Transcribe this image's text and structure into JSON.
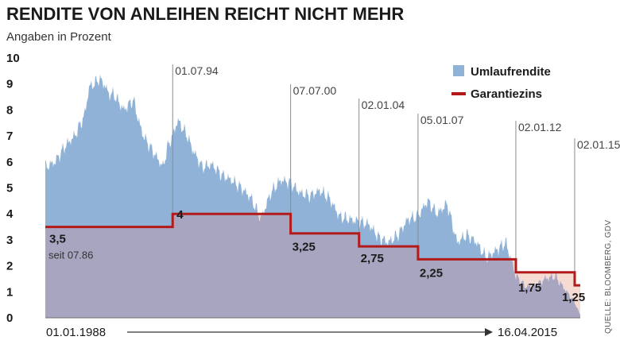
{
  "title": "RENDITE VON ANLEIHEN REICHT NICHT MEHR",
  "subtitle": "Angaben in Prozent",
  "source": "QUELLE: BLOOMBERG, GDV",
  "colors": {
    "umlauf": "#8fb2d6",
    "garantie": "#b31b1b",
    "gap_fill": "#f6dbd3",
    "overlap": "#a7a5bf"
  },
  "chart_data": {
    "type": "area",
    "title": "RENDITE VON ANLEIHEN REICHT NICHT MEHR",
    "ylabel": "Angaben in Prozent",
    "ylim": [
      0,
      10
    ],
    "yticks": [
      "0",
      "1",
      "2",
      "3",
      "4",
      "5",
      "6",
      "7",
      "8",
      "9",
      "10"
    ],
    "x_range": [
      "01.01.1988",
      "16.04.2015"
    ],
    "x_start_label": "01.01.1988",
    "x_end_label": "16.04.2015",
    "legend_position": "top-right",
    "series": [
      {
        "name": "Umlaufrendite",
        "kind": "area",
        "points": [
          [
            "01.01.1988",
            5.8
          ],
          [
            "01.07.1988",
            6.0
          ],
          [
            "01.01.1989",
            6.6
          ],
          [
            "01.07.1989",
            7.0
          ],
          [
            "01.01.1990",
            7.8
          ],
          [
            "01.04.1990",
            8.9
          ],
          [
            "01.07.1990",
            9.0
          ],
          [
            "01.10.1990",
            9.2
          ],
          [
            "01.01.1991",
            9.0
          ],
          [
            "01.04.1991",
            8.6
          ],
          [
            "01.07.1991",
            8.6
          ],
          [
            "01.10.1991",
            8.3
          ],
          [
            "01.01.1992",
            8.0
          ],
          [
            "01.04.1992",
            8.2
          ],
          [
            "01.07.1992",
            8.4
          ],
          [
            "01.10.1992",
            7.6
          ],
          [
            "01.01.1993",
            7.0
          ],
          [
            "01.07.1993",
            6.4
          ],
          [
            "01.01.1994",
            5.8
          ],
          [
            "01.04.1994",
            6.6
          ],
          [
            "01.07.1994",
            7.0
          ],
          [
            "01.10.1994",
            7.6
          ],
          [
            "01.01.1995",
            7.3
          ],
          [
            "01.04.1995",
            7.0
          ],
          [
            "01.07.1995",
            6.5
          ],
          [
            "01.01.1996",
            5.8
          ],
          [
            "01.07.1996",
            5.9
          ],
          [
            "01.01.1997",
            5.5
          ],
          [
            "01.07.1997",
            5.3
          ],
          [
            "01.01.1998",
            5.0
          ],
          [
            "01.07.1998",
            4.6
          ],
          [
            "01.01.1999",
            3.8
          ],
          [
            "01.07.1999",
            4.8
          ],
          [
            "01.01.2000",
            5.3
          ],
          [
            "01.07.2000",
            5.2
          ],
          [
            "01.01.2001",
            4.8
          ],
          [
            "01.07.2001",
            4.7
          ],
          [
            "01.01.2002",
            4.9
          ],
          [
            "01.07.2002",
            4.6
          ],
          [
            "01.01.2003",
            3.9
          ],
          [
            "01.07.2003",
            3.8
          ],
          [
            "01.01.2004",
            3.7
          ],
          [
            "01.07.2004",
            3.6
          ],
          [
            "01.01.2005",
            3.1
          ],
          [
            "01.07.2005",
            2.9
          ],
          [
            "01.01.2006",
            3.2
          ],
          [
            "01.07.2006",
            3.8
          ],
          [
            "01.01.2007",
            3.9
          ],
          [
            "01.07.2007",
            4.5
          ],
          [
            "01.01.2008",
            4.0
          ],
          [
            "01.07.2008",
            4.4
          ],
          [
            "01.01.2009",
            2.9
          ],
          [
            "01.07.2009",
            3.2
          ],
          [
            "01.01.2010",
            2.9
          ],
          [
            "01.07.2010",
            2.3
          ],
          [
            "01.01.2011",
            2.6
          ],
          [
            "01.07.2011",
            2.9
          ],
          [
            "01.01.2012",
            1.6
          ],
          [
            "01.07.2012",
            1.2
          ],
          [
            "01.01.2013",
            1.2
          ],
          [
            "01.07.2013",
            1.5
          ],
          [
            "01.01.2014",
            1.6
          ],
          [
            "01.07.2014",
            1.1
          ],
          [
            "01.01.2015",
            0.6
          ],
          [
            "16.04.2015",
            0.1
          ]
        ]
      },
      {
        "name": "Garantiezins",
        "kind": "step",
        "steps": [
          {
            "from": "01.01.1988",
            "value": 3.5,
            "label": "3,5",
            "note": "seit 07.86"
          },
          {
            "from": "01.07.1994",
            "value": 4,
            "label": "4"
          },
          {
            "from": "07.07.2000",
            "value": 3.25,
            "label": "3,25"
          },
          {
            "from": "02.01.2004",
            "value": 2.75,
            "label": "2,75"
          },
          {
            "from": "05.01.2007",
            "value": 2.25,
            "label": "2,25"
          },
          {
            "from": "02.01.2012",
            "value": 1.75,
            "label": "1,75"
          },
          {
            "from": "02.01.2015",
            "value": 1.25,
            "label": "1,25"
          }
        ],
        "end": "16.04.2015"
      }
    ],
    "change_dates": [
      {
        "date": "01.07.1994",
        "label": "01.07.94"
      },
      {
        "date": "07.07.2000",
        "label": "07.07.00"
      },
      {
        "date": "02.01.2004",
        "label": "02.01.04"
      },
      {
        "date": "05.01.2007",
        "label": "05.01.07"
      },
      {
        "date": "02.01.2012",
        "label": "02.01.12"
      },
      {
        "date": "02.01.2015",
        "label": "02.01.15"
      }
    ]
  }
}
